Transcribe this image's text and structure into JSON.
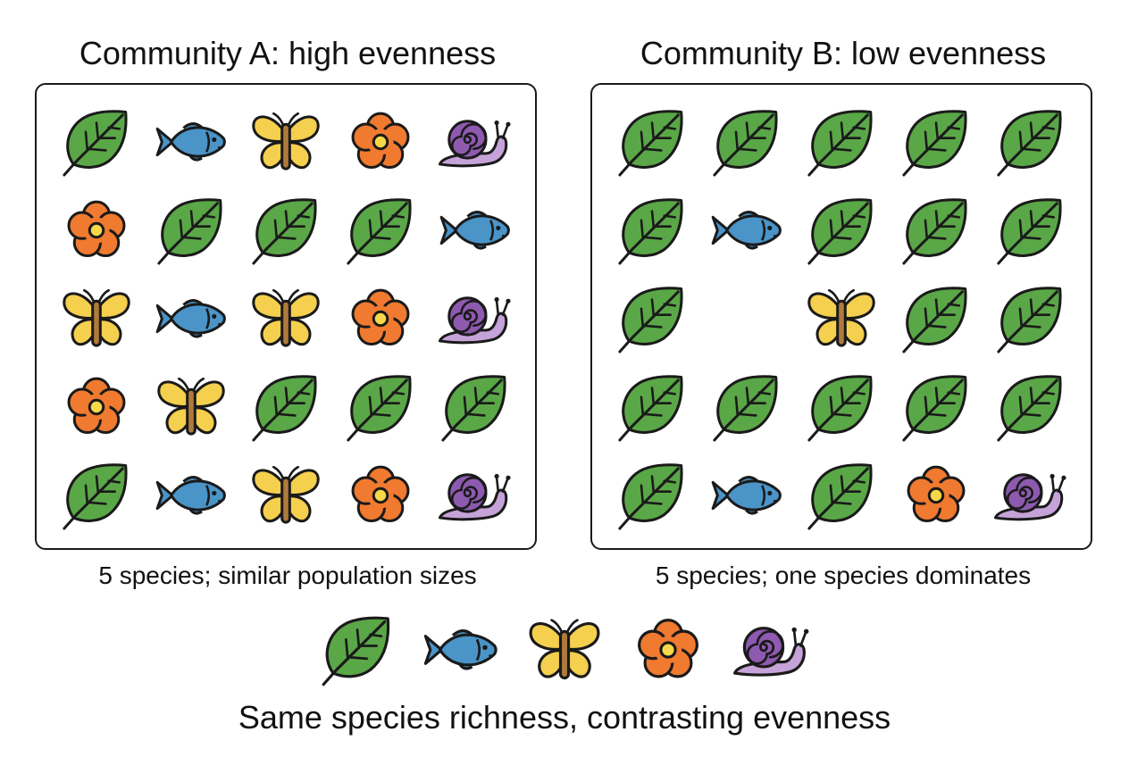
{
  "community_a": {
    "title": "Community A: high evenness",
    "caption": "5 species; similar population sizes",
    "grid": [
      [
        "leaf",
        "fish",
        "butterfly",
        "flower",
        "snail"
      ],
      [
        "flower",
        "leaf",
        "leaf",
        "leaf",
        "fish"
      ],
      [
        "butterfly",
        "fish",
        "butterfly",
        "flower",
        "snail"
      ],
      [
        "flower",
        "butterfly",
        "leaf",
        "leaf",
        "leaf"
      ],
      [
        "leaf",
        "fish",
        "butterfly",
        "flower",
        "snail"
      ]
    ]
  },
  "community_b": {
    "title": "Community B: low evenness",
    "caption": "5 species; one species dominates",
    "grid": [
      [
        "leaf",
        "leaf",
        "leaf",
        "leaf",
        "leaf"
      ],
      [
        "leaf",
        "fish",
        "leaf",
        "leaf",
        "leaf"
      ],
      [
        "leaf",
        "",
        "butterfly",
        "leaf",
        "leaf"
      ],
      [
        "leaf",
        "leaf",
        "leaf",
        "leaf",
        "leaf"
      ],
      [
        "leaf",
        "fish",
        "leaf",
        "flower",
        "snail"
      ]
    ]
  },
  "legend": [
    "leaf",
    "fish",
    "butterfly",
    "flower",
    "snail"
  ],
  "footer_title": "Same species richness, contrasting evenness",
  "colors": {
    "leaf": "#5aa747",
    "fish": "#4a94c8",
    "butterfly": "#f5cf4e",
    "flower": "#f07a30",
    "flower_center": "#f8d848",
    "snail_shell": "#8e5ab0",
    "snail_body": "#c5a3d8",
    "outline": "#1a1a1a"
  }
}
